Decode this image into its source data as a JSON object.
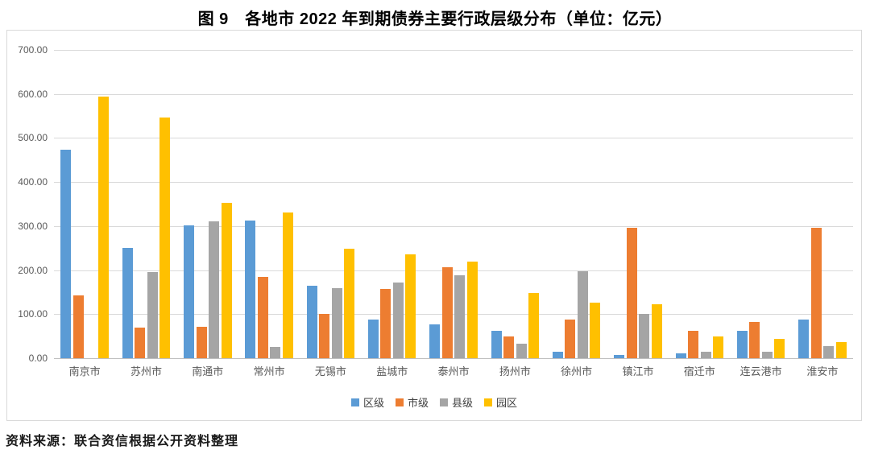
{
  "page": {
    "title": "图 9　各地市 2022 年到期债券主要行政层级分布（单位：亿元）",
    "source": "资料来源：联合资信根据公开资料整理"
  },
  "chart_data": {
    "type": "bar",
    "title": "图 9　各地市 2022 年到期债券主要行政层级分布（单位：亿元）",
    "unit": "亿元",
    "categories": [
      "南京市",
      "苏州市",
      "南通市",
      "常州市",
      "无锡市",
      "盐城市",
      "泰州市",
      "扬州市",
      "徐州市",
      "镇江市",
      "宿迁市",
      "连云港市",
      "淮安市"
    ],
    "series": [
      {
        "name": "区级",
        "color": "#5B9BD5",
        "values": [
          473,
          251,
          302,
          312,
          165,
          88,
          77,
          62,
          14,
          7,
          11,
          63,
          87
        ]
      },
      {
        "name": "市级",
        "color": "#ED7D31",
        "values": [
          143,
          70,
          71,
          185,
          100,
          157,
          207,
          50,
          87,
          297,
          62,
          83,
          297
        ]
      },
      {
        "name": "县级",
        "color": "#A5A5A5",
        "values": [
          0,
          195,
          311,
          25,
          160,
          172,
          188,
          33,
          197,
          100,
          14,
          14,
          27
        ]
      },
      {
        "name": "园区",
        "color": "#FFC000",
        "values": [
          594,
          546,
          352,
          331,
          248,
          236,
          219,
          148,
          126,
          123,
          50,
          44,
          36
        ]
      }
    ],
    "ylim": [
      0,
      700
    ],
    "ytick_step": 100,
    "ytick_labels": [
      "0.00",
      "100.00",
      "200.00",
      "300.00",
      "400.00",
      "500.00",
      "600.00",
      "700.00"
    ],
    "grid": true,
    "legend_position": "bottom"
  }
}
